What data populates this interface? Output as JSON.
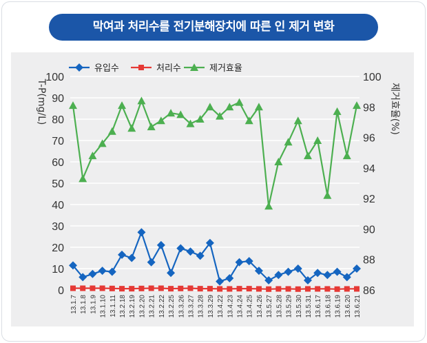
{
  "title": "막여과 처리수를 전기분해장치에 따른 인 제거 변화",
  "chart_data": {
    "type": "line",
    "categories": [
      "13.1.7",
      "13.1.8",
      "13.1.9",
      "13.1.10",
      "13.1.11",
      "13.2.18",
      "13.2.19",
      "13.2.20",
      "13.2.21",
      "13.2.22",
      "13.2.25",
      "13.3.26",
      "13.3.27",
      "13.3.28",
      "13.3.29",
      "13.4.22",
      "13.4.23",
      "13.4.24",
      "13.4.25",
      "13.4.26",
      "13.5.27",
      "13.5.28",
      "13.5.29",
      "13.5.30",
      "13.5.31",
      "13.6.17",
      "13.6.18",
      "13.6.19",
      "13.6.20",
      "13.6.21"
    ],
    "ylabel_left": "T-P(mg/L)",
    "ylabel_right": "제거효율(%)",
    "ylim_left": [
      0,
      100
    ],
    "ylim_right": [
      86,
      100
    ],
    "yticks_left": [
      0,
      10,
      20,
      30,
      40,
      50,
      60,
      70,
      80,
      90,
      100
    ],
    "yticks_right": [
      86,
      88,
      90,
      92,
      94,
      96,
      98,
      100
    ],
    "legend_position": "top-left",
    "series": [
      {
        "name": "유입수",
        "axis": "left",
        "color": "#1565c0",
        "marker": "diamond",
        "values": [
          11.5,
          6,
          7.5,
          9,
          8.5,
          16.5,
          15,
          27,
          13,
          21,
          8,
          19.5,
          18,
          16,
          22,
          4,
          5.5,
          13,
          13.5,
          9,
          4.5,
          7,
          8.5,
          10,
          4.5,
          8,
          7,
          8.5,
          6,
          10
        ]
      },
      {
        "name": "처리수",
        "axis": "left",
        "color": "#e53935",
        "marker": "square",
        "values": [
          0.8,
          0.8,
          0.8,
          0.8,
          0.7,
          0.6,
          0.6,
          0.7,
          0.8,
          0.8,
          0.6,
          0.7,
          0.8,
          0.6,
          0.6,
          0.5,
          0.5,
          0.6,
          0.6,
          0.5,
          0.4,
          0.5,
          0.5,
          0.4,
          0.5,
          0.5,
          0.5,
          0.4,
          0.5,
          0.5
        ]
      },
      {
        "name": "제거효율",
        "axis": "right",
        "color": "#4caf50",
        "marker": "triangle",
        "values": [
          98.1,
          93.3,
          94.8,
          95.6,
          96.4,
          98.1,
          96.6,
          98.4,
          96.7,
          97.1,
          97.6,
          97.5,
          96.9,
          97.2,
          98,
          97.4,
          98,
          98.3,
          97.1,
          98,
          91.5,
          94.4,
          95.7,
          97.1,
          94.8,
          95.8,
          92.2,
          97.7,
          94.8,
          98.1
        ]
      }
    ]
  }
}
